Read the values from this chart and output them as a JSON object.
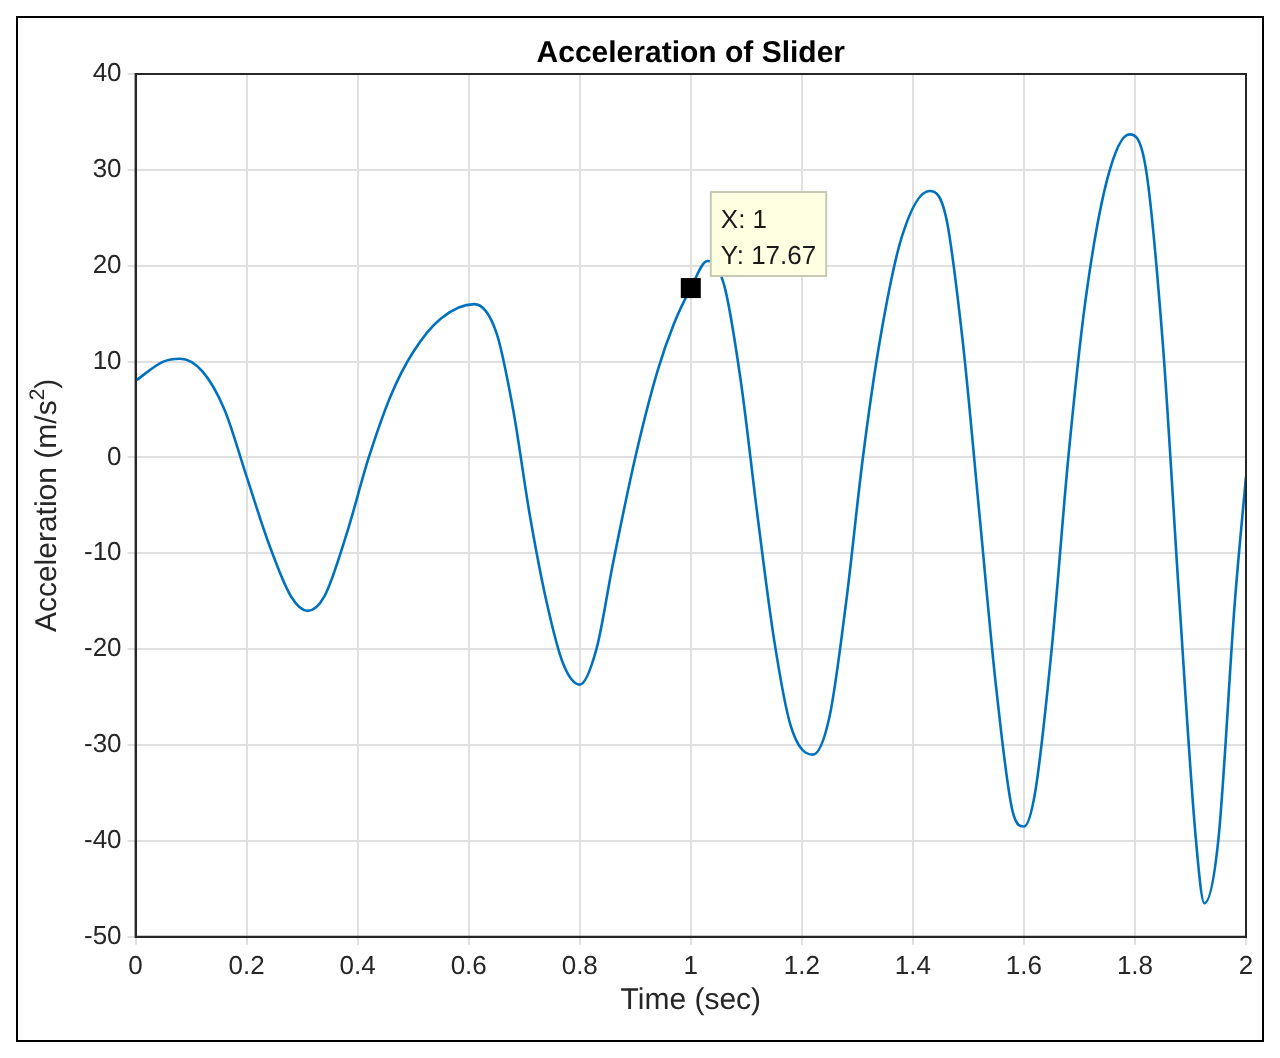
{
  "chart_data": {
    "type": "line",
    "title": "Acceleration of Slider",
    "xlabel": "Time (sec)",
    "ylabel": "Acceleration (m/s$^{2}$)",
    "x": [
      0,
      0.05,
      0.08,
      0.12,
      0.16,
      0.2,
      0.24,
      0.28,
      0.31,
      0.34,
      0.38,
      0.42,
      0.46,
      0.5,
      0.55,
      0.61,
      0.65,
      0.68,
      0.71,
      0.74,
      0.77,
      0.8,
      0.83,
      0.86,
      0.9,
      0.94,
      0.97,
      1.0,
      1.03,
      1.06,
      1.09,
      1.12,
      1.15,
      1.18,
      1.22,
      1.25,
      1.28,
      1.31,
      1.34,
      1.38,
      1.43,
      1.46,
      1.49,
      1.52,
      1.55,
      1.58,
      1.6,
      1.62,
      1.65,
      1.68,
      1.71,
      1.75,
      1.79,
      1.82,
      1.85,
      1.88,
      1.91,
      1.925,
      1.95,
      1.98,
      2.0
    ],
    "series": [
      {
        "color": "#0072bd",
        "values": [
          8,
          10,
          10.3,
          9,
          5,
          -2,
          -9,
          -14.5,
          -16,
          -14.5,
          -8,
          0,
          6.5,
          11,
          14.5,
          16,
          13,
          5,
          -6,
          -15,
          -21.5,
          -23.7,
          -20,
          -11,
          0,
          9,
          14,
          17.67,
          20.5,
          18,
          8,
          -6,
          -19,
          -28,
          -31,
          -27,
          -15,
          0,
          12,
          23,
          27.8,
          25,
          12,
          -6,
          -24,
          -37,
          -38.5,
          -35,
          -20,
          0,
          16,
          29,
          33.7,
          30,
          12,
          -15,
          -40,
          -46.5,
          -40,
          -15,
          -2
        ]
      }
    ],
    "xlim": [
      0,
      2
    ],
    "xticks": [
      0,
      0.2,
      0.4,
      0.6,
      0.8,
      1,
      1.2,
      1.4,
      1.6,
      1.8,
      2
    ],
    "ylim": [
      -50,
      40
    ],
    "yticks": [
      -50,
      -40,
      -30,
      -20,
      -10,
      0,
      10,
      20,
      30,
      40
    ],
    "grid": true,
    "legend": false,
    "marker": "none",
    "line_style": "solid",
    "annotations": [
      {
        "text": "X: 1\nY: 17.67",
        "x": 1,
        "y": 17.67
      }
    ]
  }
}
